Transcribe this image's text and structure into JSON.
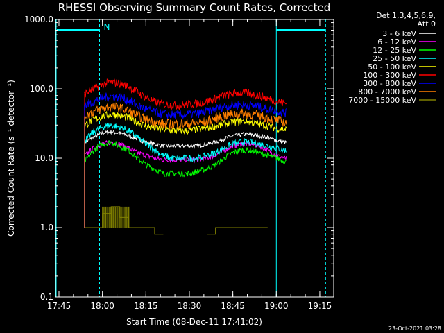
{
  "chart_data": {
    "type": "line",
    "title": "RHESSI Observing Summary Count Rates, Corrected",
    "xlabel": "Start Time (08-Dec-11 17:41:02)",
    "ylabel": "Corrected Count Rate (s⁻¹ detector⁻¹)",
    "y_scale": "log",
    "ylim": [
      0.1,
      1000
    ],
    "xlim_minutes": [
      17.73,
      19.33
    ],
    "x_tick_labels": [
      "17:45",
      "18:00",
      "18:15",
      "18:30",
      "18:45",
      "19:00",
      "19:15"
    ],
    "y_tick_labels": [
      "0.1",
      "1.0",
      "10.0",
      "100.0",
      "1000.0"
    ],
    "legend_header": [
      "Det 1,3,4,5,6,9,",
      "Att 0"
    ],
    "legend_position": "outside-right",
    "grid": false,
    "x": [
      "17:54",
      "17:57",
      "18:00",
      "18:03",
      "18:06",
      "18:09",
      "18:12",
      "18:15",
      "18:18",
      "18:21",
      "18:24",
      "18:27",
      "18:30",
      "18:33",
      "18:36",
      "18:39",
      "18:42",
      "18:45",
      "18:48",
      "18:51",
      "18:54",
      "18:57",
      "19:00",
      "19:03"
    ],
    "series": [
      {
        "name": "3 - 6 keV",
        "color": "#ffffff",
        "values": [
          17,
          20,
          23,
          24,
          23,
          21,
          19,
          17,
          16,
          15,
          15,
          15,
          15,
          15,
          16,
          17,
          19,
          21,
          22,
          22,
          21,
          20,
          18,
          17
        ]
      },
      {
        "name": "6 - 12 keV",
        "color": "#ff00ff",
        "values": [
          11,
          14,
          16,
          17,
          16,
          14,
          12,
          11,
          10,
          9.5,
          9.5,
          9.5,
          9.5,
          9.5,
          10,
          11,
          13,
          15,
          16,
          16,
          15,
          13,
          11,
          10
        ]
      },
      {
        "name": "12 - 25 keV",
        "color": "#00ff00",
        "values": [
          9,
          13,
          16,
          17,
          15,
          13,
          10,
          8,
          7,
          6,
          6,
          6,
          6,
          6.5,
          7,
          8,
          10,
          12,
          13,
          13,
          12,
          11,
          10,
          9
        ]
      },
      {
        "name": "25 - 50 keV",
        "color": "#00ffff",
        "values": [
          18,
          24,
          28,
          30,
          28,
          25,
          20,
          16,
          13,
          11,
          10,
          10,
          10,
          10,
          11,
          12,
          14,
          16,
          17,
          17,
          16,
          15,
          14,
          13
        ]
      },
      {
        "name": "50 - 100 keV",
        "color": "#ffff00",
        "values": [
          30,
          36,
          40,
          43,
          41,
          38,
          33,
          29,
          27,
          26,
          25,
          25,
          25,
          26,
          27,
          29,
          31,
          33,
          34,
          33,
          31,
          29,
          27,
          26
        ]
      },
      {
        "name": "100 - 300 keV",
        "color": "#ff0000",
        "values": [
          85,
          100,
          115,
          125,
          120,
          108,
          90,
          75,
          65,
          60,
          58,
          58,
          60,
          62,
          66,
          72,
          80,
          85,
          88,
          85,
          80,
          73,
          66,
          62
        ]
      },
      {
        "name": "300 - 800 keV",
        "color": "#0000ff",
        "values": [
          58,
          66,
          74,
          78,
          75,
          68,
          58,
          51,
          46,
          43,
          42,
          42,
          43,
          44,
          47,
          51,
          56,
          58,
          59,
          58,
          55,
          51,
          48,
          45
        ]
      },
      {
        "name": "800 - 7000 keV",
        "color": "#ff7f00",
        "values": [
          40,
          47,
          52,
          55,
          53,
          48,
          41,
          36,
          33,
          31,
          31,
          31,
          31,
          32,
          34,
          37,
          41,
          43,
          44,
          43,
          41,
          38,
          35,
          33
        ]
      },
      {
        "name": "7000 - 15000 keV",
        "color": "#808000",
        "values": [
          1.0,
          1.0,
          1.6,
          2.0,
          1.4,
          1.0,
          1.0,
          1.0,
          0.8,
          null,
          null,
          null,
          null,
          null,
          0.8,
          1.0,
          1.0,
          1.0,
          1.0,
          1.0,
          1.0,
          null,
          null,
          null
        ]
      }
    ],
    "annotation": {
      "label": "N",
      "color": "#00ffff"
    }
  },
  "timestamp": "23-Oct-2021 03:28"
}
